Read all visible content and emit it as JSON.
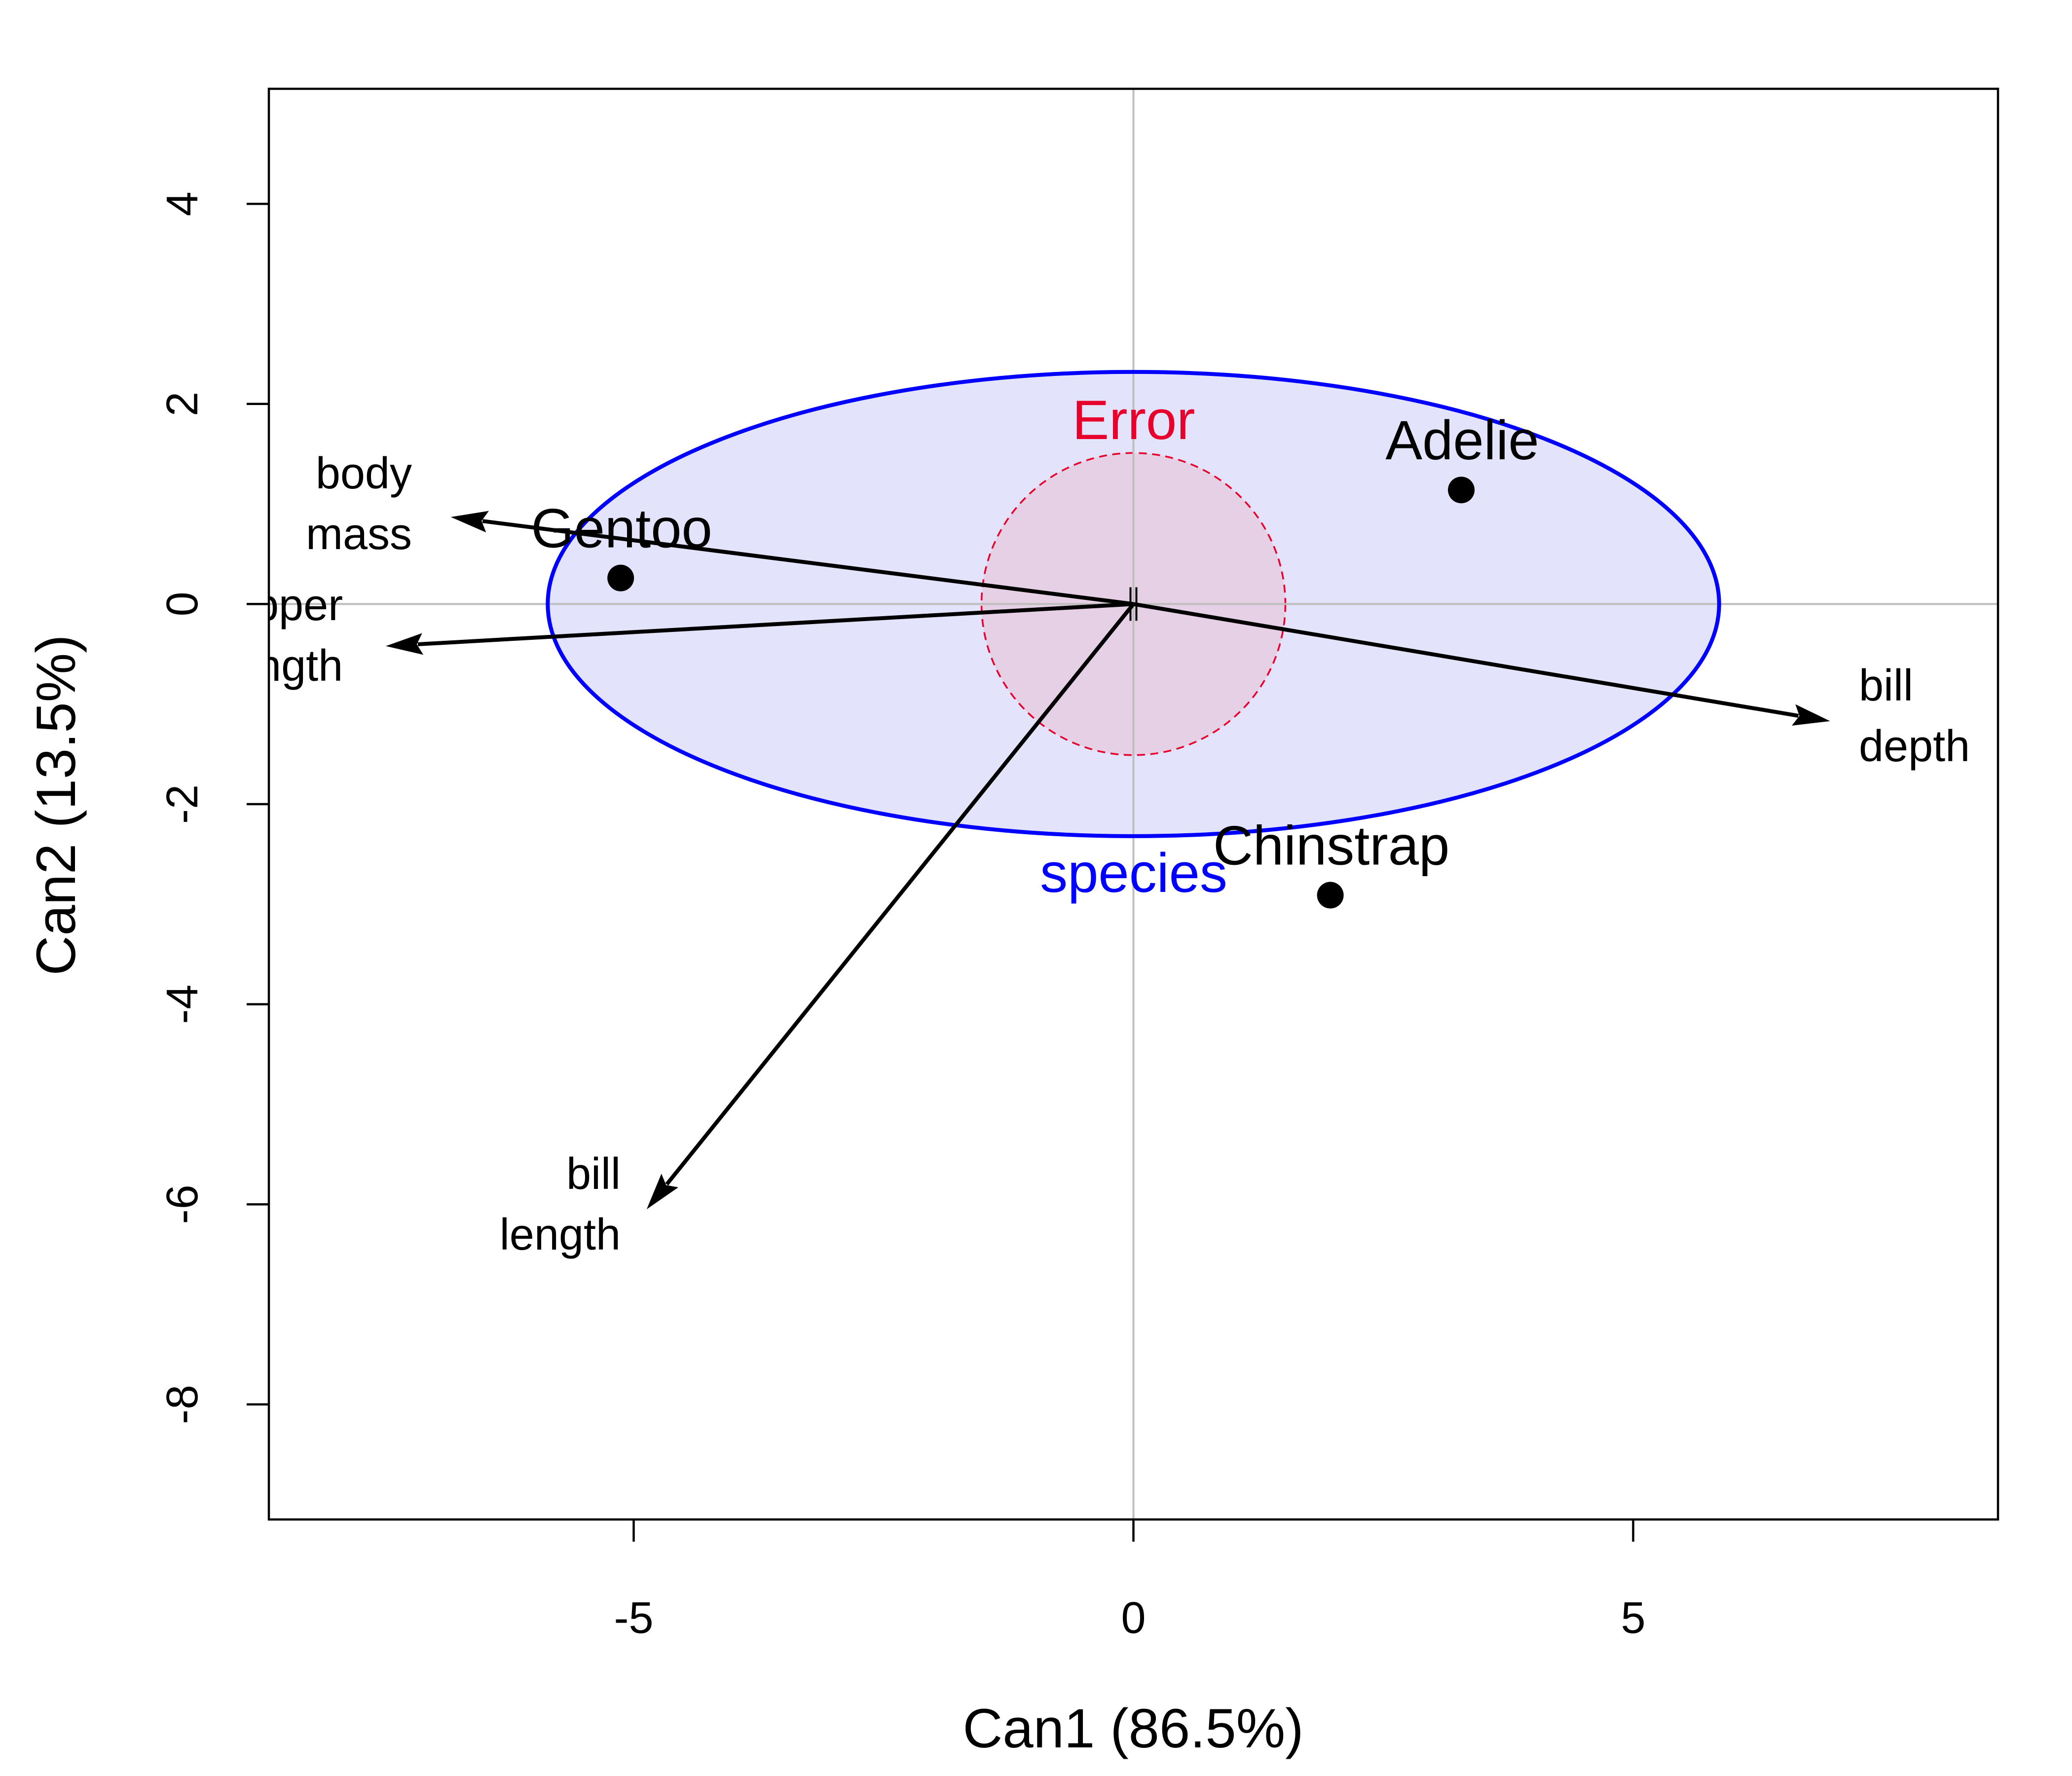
{
  "chart_data": {
    "type": "scatter",
    "xlabel": "Can1 (86.5%)",
    "ylabel": "Can2 (13.5%)",
    "xlim": [
      -8.65,
      8.65
    ],
    "ylim": [
      -9.15,
      5.15
    ],
    "x_ticks": [
      -5,
      0,
      5
    ],
    "y_ticks": [
      -8,
      -6,
      -4,
      -2,
      0,
      2,
      4
    ],
    "grid": false,
    "reference_lines": {
      "x": 0,
      "y": 0,
      "color": "#bebebe"
    },
    "points": [
      {
        "label": "Adelie",
        "x": 3.28,
        "y": 1.14
      },
      {
        "label": "Chinstrap",
        "x": 1.97,
        "y": -2.91
      },
      {
        "label": "Gentoo",
        "x": -5.13,
        "y": 0.26
      }
    ],
    "vectors": [
      {
        "label_lines": [
          "body",
          "mass"
        ],
        "x": -6.83,
        "y": 0.87
      },
      {
        "label_lines": [
          "flipper",
          "length"
        ],
        "x": -7.48,
        "y": -0.42
      },
      {
        "label_lines": [
          "bill",
          "depth"
        ],
        "x": 6.97,
        "y": -1.17
      },
      {
        "label_lines": [
          "bill",
          "length"
        ],
        "x": -4.87,
        "y": -6.05
      }
    ],
    "ellipses": [
      {
        "label": "species",
        "cx": 0,
        "cy": 0,
        "rx": 5.86,
        "ry": 2.32,
        "color": "#0000ff",
        "fill": "#e3e3fb",
        "line": "solid"
      },
      {
        "label": "Error",
        "cx": 0,
        "cy": 0,
        "rx": 1.52,
        "ry": 1.51,
        "color": "#e6002b",
        "fill": "#e6d0e5",
        "line": "dashed"
      }
    ],
    "colors": {
      "axis": "#000000",
      "points": "#000000",
      "species_label": "#0000ff",
      "error_label": "#e6002b"
    }
  }
}
